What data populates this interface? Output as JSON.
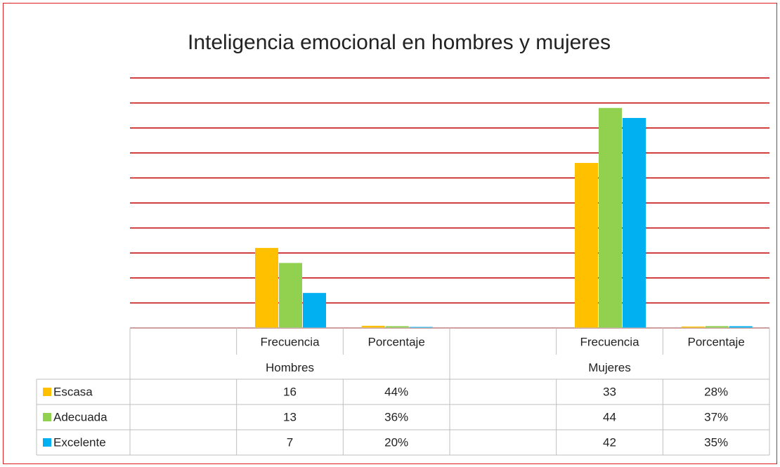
{
  "chart_data": {
    "type": "bar",
    "title": "Inteligencia emocional en hombres y mujeres",
    "categories": [
      null,
      "Frecuencia",
      "Porcentaje",
      null,
      "Frecuencia",
      "Porcentaje"
    ],
    "groups": [
      "Hombres",
      "Mujeres"
    ],
    "series": [
      {
        "name": "Escasa",
        "color": "#ffc000",
        "values": [
          null,
          16,
          0.44,
          null,
          33,
          0.28
        ],
        "value_labels": [
          null,
          "16",
          "44%",
          null,
          "33",
          "28%"
        ]
      },
      {
        "name": "Adecuada",
        "color": "#92d050",
        "values": [
          null,
          13,
          0.36,
          null,
          44,
          0.37
        ],
        "value_labels": [
          null,
          "13",
          "36%",
          null,
          "44",
          "37%"
        ]
      },
      {
        "name": "Excelente",
        "color": "#00b0f0",
        "values": [
          null,
          7,
          0.2,
          null,
          42,
          0.35
        ],
        "value_labels": [
          null,
          "7",
          "20%",
          null,
          "42",
          "35%"
        ]
      }
    ],
    "ylim": [
      0,
      50
    ],
    "yticks": [
      0,
      5,
      10,
      15,
      20,
      25,
      30,
      35,
      40,
      45,
      50
    ],
    "grid": true,
    "grid_color": "#c00000"
  }
}
